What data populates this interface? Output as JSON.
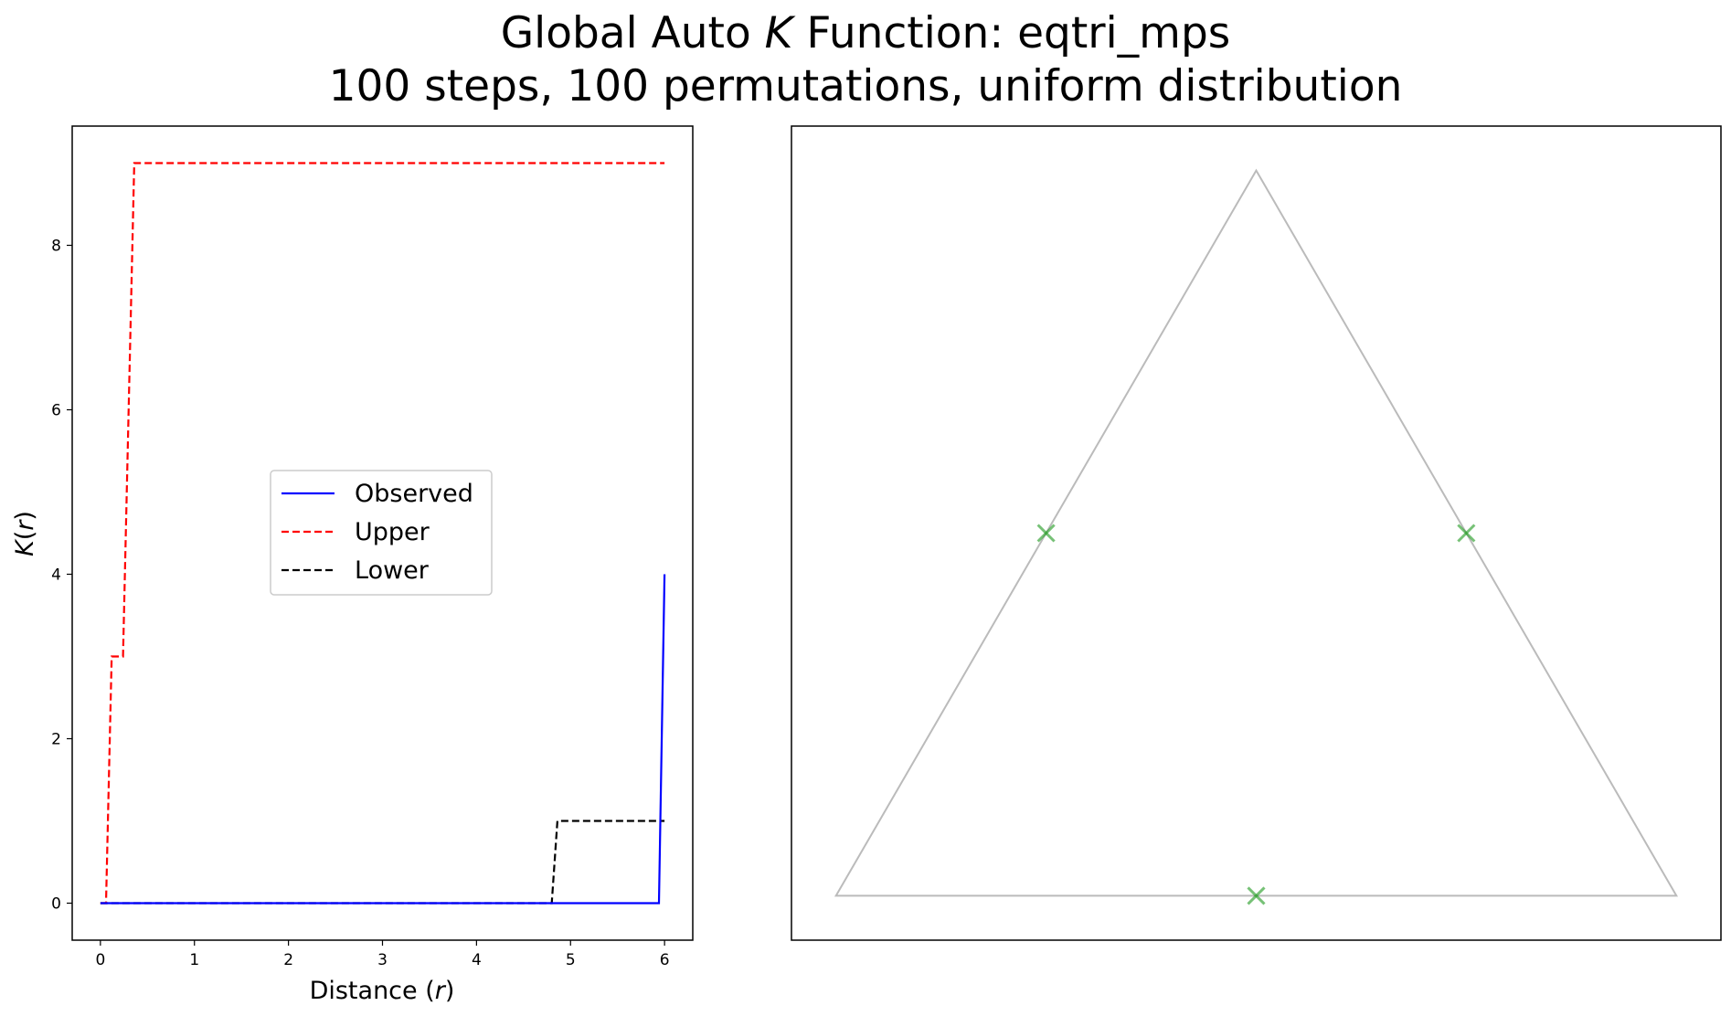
{
  "title": {
    "line1_prefix": "Global Auto ",
    "line1_italic": "K",
    "line1_suffix": " Function: eqtri_mps",
    "line2": "100 steps, 100 permutations, uniform distribution"
  },
  "chart_data": [
    {
      "type": "line",
      "xlabel_prefix": "Distance (",
      "xlabel_italic": "r",
      "xlabel_suffix": ")",
      "ylabel_italic": "K",
      "ylabel_open": "(",
      "ylabel_var": "r",
      "ylabel_close": ")",
      "xlim": [
        -0.3,
        6.3
      ],
      "ylim": [
        -0.45,
        9.45
      ],
      "xticks": [
        0,
        1,
        2,
        3,
        4,
        5,
        6
      ],
      "yticks": [
        0,
        2,
        4,
        6,
        8
      ],
      "grid": false,
      "legend_position": "center",
      "series": [
        {
          "name": "Observed",
          "color": "#0000ff",
          "dash": "solid",
          "x": [
            0,
            5.94,
            6.0
          ],
          "y": [
            0,
            0,
            4
          ]
        },
        {
          "name": "Upper",
          "color": "#ff0000",
          "dash": "dashed",
          "x": [
            0,
            0.06,
            0.12,
            0.24,
            0.36,
            6.0
          ],
          "y": [
            0,
            0,
            3,
            3,
            9,
            9
          ]
        },
        {
          "name": "Lower",
          "color": "#000000",
          "dash": "dashed",
          "x": [
            0,
            4.8,
            4.86,
            6.0
          ],
          "y": [
            0,
            0,
            1,
            1
          ]
        }
      ]
    },
    {
      "type": "scatter",
      "xticks": [],
      "yticks": [],
      "triangle": {
        "color": "#bbbbbb",
        "vertices": [
          [
            0,
            0
          ],
          [
            10,
            0
          ],
          [
            5,
            8.66
          ]
        ]
      },
      "points": {
        "color": "#2ca02c",
        "marker": "x",
        "x": [
          2.5,
          7.5,
          5.0
        ],
        "y": [
          4.33,
          4.33,
          0.0
        ]
      }
    }
  ]
}
